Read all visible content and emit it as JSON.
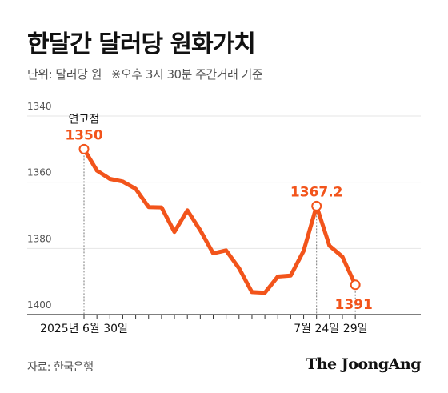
{
  "header": {
    "title": "한달간 달러당 원화가치",
    "unit_note": "단위: 달러당 원",
    "time_note": "※오후 3시 30분 주간거래 기준"
  },
  "footer": {
    "source": "자료: 한국은행",
    "brand": "The JoongAng"
  },
  "colors": {
    "line": "#f2541b",
    "grid": "#e6e6e6",
    "axis": "#333333",
    "tick_text": "#555555"
  },
  "chart_data": {
    "type": "line",
    "title": "한달간 달러당 원화가치",
    "ylim": [
      1400,
      1340
    ],
    "y_inverted": true,
    "y_ticks": [
      1340,
      1360,
      1380,
      1400
    ],
    "grid": true,
    "x_tick_labels": [
      {
        "index": 0,
        "label": "2025년 6월 30일"
      },
      {
        "index": 18,
        "label": "7월 24일"
      },
      {
        "index": 21,
        "label": "29일"
      }
    ],
    "series": [
      {
        "values": [
          1350,
          1356.5,
          1359,
          1359.8,
          1362,
          1367.5,
          1367.6,
          1375,
          1368.5,
          1374.5,
          1381.5,
          1380.6,
          1386,
          1393.2,
          1393.4,
          1388.5,
          1388.2,
          1380.8,
          1367.2,
          1379.2,
          1382.5,
          1391
        ]
      }
    ],
    "annotations": [
      {
        "index": 0,
        "label": "연고점",
        "value_label": "1350"
      },
      {
        "index": 18,
        "value_label": "1367.2"
      },
      {
        "index": 21,
        "value_label": "1391"
      }
    ]
  }
}
